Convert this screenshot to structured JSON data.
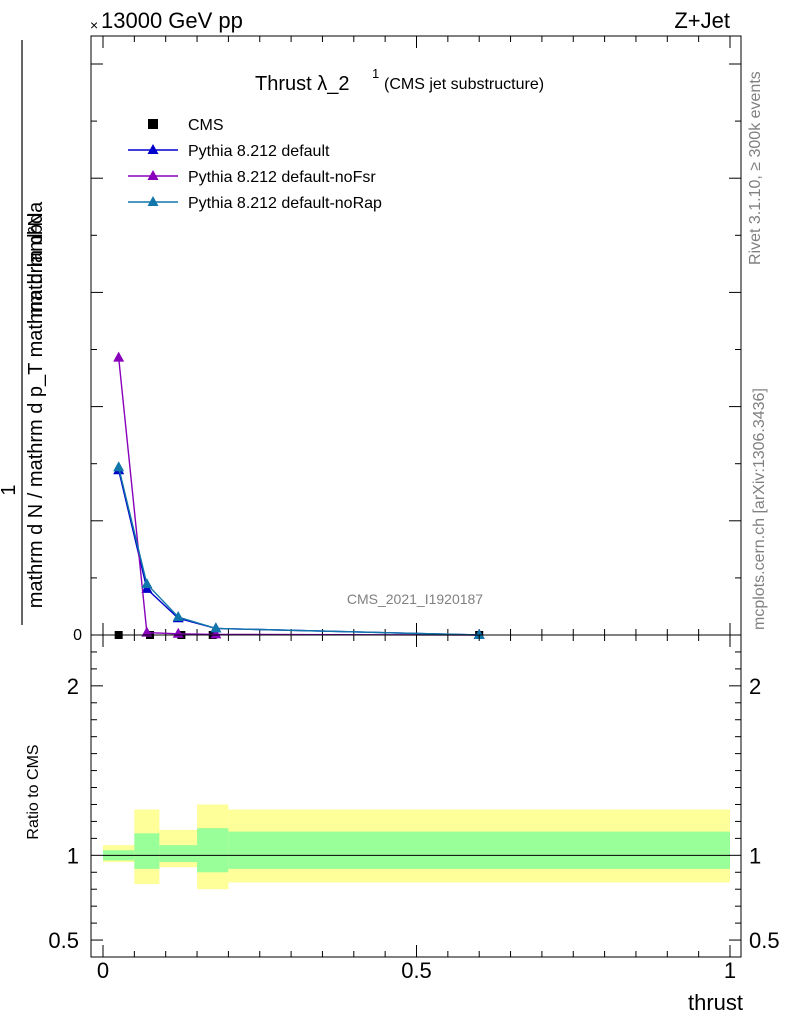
{
  "header": {
    "energy_label": "13000 GeV pp",
    "energy_prefix": "×",
    "process_label": "Z+Jet"
  },
  "side_labels": {
    "rivet": "Rivet 3.1.10, ≥ 300k events",
    "mcplots": "mcplots.cern.ch [arXiv:1306.3436]"
  },
  "chart_data": [
    {
      "type": "line",
      "title": "Thrust λ_2",
      "title_superscript": "1",
      "subtitle": "(CMS jet substructure)",
      "watermark": "CMS_2021_I1920187",
      "ylabel": "1 / (mathrm d N / mathrm d p_T) · mathrm d²N / (mathrm d p_T mathrm d lambda)",
      "xlim": [
        0,
        1
      ],
      "ylim": [
        0,
        1.0
      ],
      "y_tick_labels": [
        {
          "value": 0,
          "label": "0"
        }
      ],
      "legend_position": "top-left",
      "series": [
        {
          "name": "CMS",
          "marker": "square",
          "color": "#000000",
          "x": [
            0.025,
            0.075,
            0.125,
            0.175,
            0.6
          ],
          "y": [
            0.0,
            0.0,
            0.0,
            0.0,
            0.0
          ]
        },
        {
          "name": "Pythia 8.212 default",
          "marker": "triangle",
          "color": "#0000cc",
          "x": [
            0.025,
            0.07,
            0.12,
            0.18,
            0.6
          ],
          "y": [
            0.275,
            0.077,
            0.028,
            0.011,
            0.0
          ]
        },
        {
          "name": "Pythia 8.212 default-noFsr",
          "marker": "triangle",
          "color": "#8800bb",
          "x": [
            0.025,
            0.07,
            0.12,
            0.18,
            0.6
          ],
          "y": [
            0.463,
            0.004,
            0.002,
            0.001,
            0.0
          ]
        },
        {
          "name": "Pythia 8.212 default-noRap",
          "marker": "triangle",
          "color": "#1177aa",
          "x": [
            0.025,
            0.07,
            0.12,
            0.18,
            0.6
          ],
          "y": [
            0.28,
            0.085,
            0.03,
            0.011,
            0.0
          ]
        }
      ]
    },
    {
      "type": "area",
      "ylabel": "Ratio to CMS",
      "xlabel": "thrust",
      "xlim": [
        0,
        1
      ],
      "ylim": [
        0.4,
        2.3
      ],
      "x_tick_labels": [
        {
          "value": 0,
          "label": "0"
        },
        {
          "value": 0.5,
          "label": "0.5"
        },
        {
          "value": 1,
          "label": "1"
        }
      ],
      "y_tick_labels": [
        {
          "value": 0.5,
          "label": "0.5"
        },
        {
          "value": 1,
          "label": "1"
        },
        {
          "value": 2,
          "label": "2"
        }
      ],
      "reference_line": 1,
      "bands": [
        {
          "x_lo": 0.0,
          "x_hi": 0.05,
          "stat_lo": 0.97,
          "stat_hi": 1.03,
          "tot_lo": 0.96,
          "tot_hi": 1.06
        },
        {
          "x_lo": 0.05,
          "x_hi": 0.09,
          "stat_lo": 0.92,
          "stat_hi": 1.13,
          "tot_lo": 0.83,
          "tot_hi": 1.27
        },
        {
          "x_lo": 0.09,
          "x_hi": 0.15,
          "stat_lo": 0.96,
          "stat_hi": 1.06,
          "tot_lo": 0.93,
          "tot_hi": 1.15
        },
        {
          "x_lo": 0.15,
          "x_hi": 0.2,
          "stat_lo": 0.9,
          "stat_hi": 1.16,
          "tot_lo": 0.8,
          "tot_hi": 1.3
        },
        {
          "x_lo": 0.2,
          "x_hi": 1.0,
          "stat_lo": 0.92,
          "stat_hi": 1.14,
          "tot_lo": 0.84,
          "tot_hi": 1.27
        }
      ],
      "band_colors": {
        "stat": "#99ff99",
        "total": "#ffff99"
      }
    }
  ]
}
